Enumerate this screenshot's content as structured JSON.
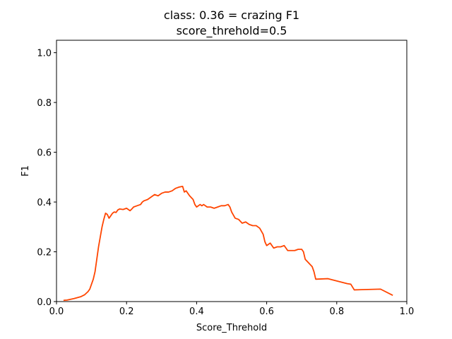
{
  "chart_data": {
    "type": "line",
    "title": "class: 0.36 = crazing F1",
    "subtitle": "score_threhold=0.5",
    "xlabel": "Score_Threhold",
    "ylabel": "F1",
    "xlim": [
      0.0,
      1.0
    ],
    "ylim": [
      0.0,
      1.05
    ],
    "xticks": [
      0.0,
      0.2,
      0.4,
      0.6,
      0.8,
      1.0
    ],
    "xtick_labels": [
      "0.0",
      "0.2",
      "0.4",
      "0.6",
      "0.8",
      "1.0"
    ],
    "yticks": [
      0.0,
      0.2,
      0.4,
      0.6,
      0.8,
      1.0
    ],
    "ytick_labels": [
      "0.0",
      "0.2",
      "0.4",
      "0.6",
      "0.8",
      "1.0"
    ],
    "grid": false,
    "line_color": "#ff4500",
    "series": [
      {
        "x": [
          0.02,
          0.03,
          0.05,
          0.07,
          0.08,
          0.09,
          0.095,
          0.1,
          0.105,
          0.11,
          0.115,
          0.12,
          0.125,
          0.13,
          0.135,
          0.14,
          0.145,
          0.15,
          0.155,
          0.16,
          0.165,
          0.17,
          0.175,
          0.18,
          0.19,
          0.2,
          0.21,
          0.215,
          0.22,
          0.23,
          0.24,
          0.245,
          0.25,
          0.26,
          0.27,
          0.28,
          0.29,
          0.3,
          0.31,
          0.32,
          0.33,
          0.34,
          0.35,
          0.36,
          0.365,
          0.37,
          0.38,
          0.39,
          0.395,
          0.4,
          0.41,
          0.415,
          0.42,
          0.43,
          0.44,
          0.45,
          0.46,
          0.47,
          0.48,
          0.49,
          0.495,
          0.5,
          0.51,
          0.52,
          0.53,
          0.54,
          0.55,
          0.56,
          0.57,
          0.58,
          0.59,
          0.595,
          0.6,
          0.61,
          0.62,
          0.63,
          0.64,
          0.65,
          0.66,
          0.67,
          0.68,
          0.69,
          0.7,
          0.705,
          0.71,
          0.72,
          0.73,
          0.735,
          0.74,
          0.775,
          0.83,
          0.84,
          0.85,
          0.925,
          0.96
        ],
        "y": [
          0.005,
          0.006,
          0.012,
          0.02,
          0.027,
          0.04,
          0.05,
          0.07,
          0.09,
          0.12,
          0.17,
          0.22,
          0.26,
          0.3,
          0.33,
          0.355,
          0.35,
          0.335,
          0.345,
          0.355,
          0.36,
          0.358,
          0.368,
          0.372,
          0.37,
          0.375,
          0.365,
          0.372,
          0.38,
          0.385,
          0.39,
          0.4,
          0.405,
          0.41,
          0.42,
          0.43,
          0.425,
          0.435,
          0.44,
          0.44,
          0.445,
          0.455,
          0.46,
          0.463,
          0.44,
          0.445,
          0.425,
          0.41,
          0.39,
          0.38,
          0.39,
          0.385,
          0.39,
          0.38,
          0.38,
          0.375,
          0.38,
          0.385,
          0.385,
          0.39,
          0.38,
          0.36,
          0.335,
          0.33,
          0.315,
          0.32,
          0.31,
          0.305,
          0.305,
          0.295,
          0.27,
          0.24,
          0.225,
          0.235,
          0.215,
          0.22,
          0.22,
          0.225,
          0.205,
          0.205,
          0.205,
          0.21,
          0.21,
          0.2,
          0.17,
          0.155,
          0.14,
          0.12,
          0.09,
          0.092,
          0.072,
          0.07,
          0.047,
          0.05,
          0.025
        ]
      }
    ]
  }
}
